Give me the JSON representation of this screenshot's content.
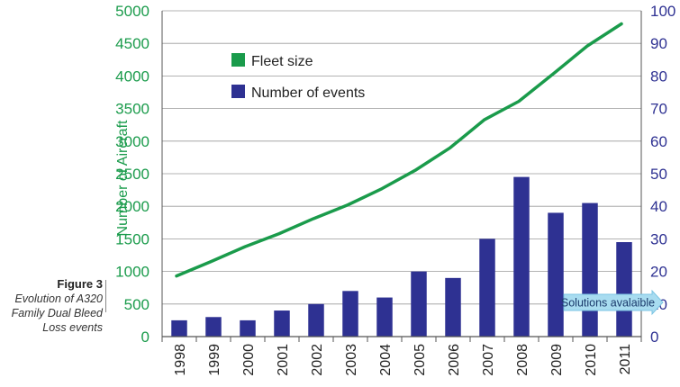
{
  "caption": {
    "figure_label": "Figure 3",
    "line1": "Evolution of A320",
    "line2": "Family Dual Bleed",
    "line3": "Loss events"
  },
  "chart_data": {
    "type": "bar",
    "categories": [
      "1998",
      "1999",
      "2000",
      "2001",
      "2002",
      "2003",
      "2004",
      "2005",
      "2006",
      "2007",
      "2008",
      "2009",
      "2010",
      "2011"
    ],
    "series": [
      {
        "name": "Fleet size",
        "type": "line",
        "axis": "left",
        "color": "#1a9b4b",
        "values": [
          930,
          1150,
          1380,
          1580,
          1810,
          2020,
          2270,
          2560,
          2900,
          3330,
          3610,
          4030,
          4460,
          4800
        ]
      },
      {
        "name": "Number of events",
        "type": "bar",
        "axis": "right",
        "color": "#2e3192",
        "values": [
          5,
          6,
          5,
          8,
          10,
          14,
          12,
          20,
          18,
          30,
          49,
          38,
          41,
          29
        ]
      }
    ],
    "ylabel": "Number of Aircraft",
    "ylim": [
      0,
      5000
    ],
    "y_ticks": [
      "0",
      "500",
      "1000",
      "1500",
      "2000",
      "2500",
      "3000",
      "3500",
      "4000",
      "4500",
      "5000"
    ],
    "y2lim": [
      0,
      100
    ],
    "y2_ticks": [
      "0",
      "10",
      "20",
      "30",
      "40",
      "50",
      "60",
      "70",
      "80",
      "90",
      "100"
    ],
    "grid": "horizontal",
    "legend_position": "top-left",
    "annotation": {
      "text": "Solutions avalaible",
      "color": "#a8dcf0",
      "from_category": "2010",
      "to_category": "2011"
    }
  }
}
